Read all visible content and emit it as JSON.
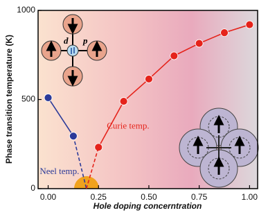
{
  "chart_data": {
    "type": "line",
    "xlabel": "Hole doping concerntration",
    "ylabel": "Phase transition temperature (K)",
    "xlim": [
      -0.05,
      1.04
    ],
    "ylim": [
      0,
      1000
    ],
    "xticks": [
      {
        "value": 0,
        "label": "0.00"
      },
      {
        "value": 0.25,
        "label": "0.25"
      },
      {
        "value": 0.5,
        "label": "0.50"
      },
      {
        "value": 0.75,
        "label": "0.75"
      },
      {
        "value": 1,
        "label": "1.00"
      }
    ],
    "yticks": [
      0,
      500,
      1000
    ],
    "series": [
      {
        "name": "Neel temp.",
        "color": "#2b3a99",
        "x": [
          0,
          0.125
        ],
        "values": [
          510,
          295
        ],
        "style": "solid"
      },
      {
        "color": "#2b3a99",
        "x": [
          0.125,
          0.19
        ],
        "values": [
          295,
          0
        ],
        "style": "dashed"
      },
      {
        "name": "Curie temp.",
        "color": "#e5231b",
        "x": [
          0.25,
          0.375,
          0.5,
          0.625,
          0.75,
          0.875,
          1
        ],
        "values": [
          232,
          490,
          615,
          745,
          815,
          875,
          920
        ],
        "style": "solid"
      },
      {
        "color": "#e5231b",
        "x": [
          0.19,
          0.25
        ],
        "values": [
          0,
          232
        ],
        "style": "dashed"
      }
    ],
    "inset_labels": [
      "d",
      "p"
    ]
  }
}
